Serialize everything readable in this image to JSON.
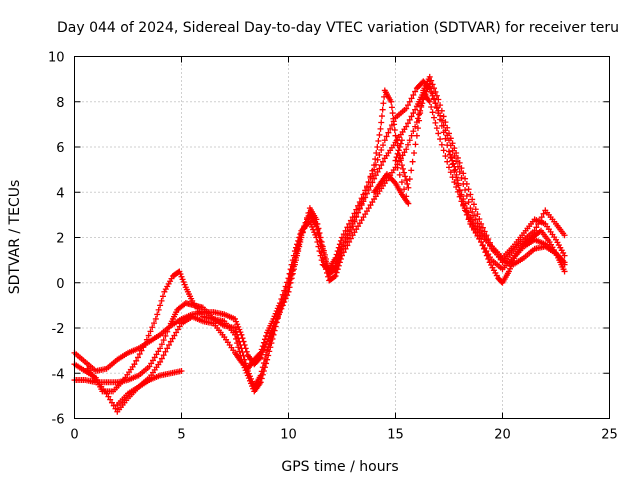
{
  "chart_data": {
    "type": "scatter",
    "title": "Day 044 of 2024, Sidereal Day-to-day VTEC variation (SDTVAR) for receiver teru",
    "xlabel": "GPS time / hours",
    "ylabel": "SDTVAR / TECUs",
    "xlim": [
      0,
      25
    ],
    "ylim": [
      -6,
      10
    ],
    "xticks": [
      "0",
      "5",
      "10",
      "15",
      "20",
      "25"
    ],
    "yticks": [
      "-6",
      "-4",
      "-2",
      "0",
      "2",
      "4",
      "6",
      "8",
      "10"
    ],
    "grid": true,
    "marker": "+",
    "color": "#ff0000",
    "series": [
      {
        "points": [
          [
            0,
            -3.1
          ],
          [
            0.5,
            -3.5
          ],
          [
            1.0,
            -3.9
          ],
          [
            1.5,
            -3.8
          ],
          [
            2.0,
            -3.4
          ],
          [
            2.5,
            -3.1
          ],
          [
            3.0,
            -2.9
          ],
          [
            3.5,
            -2.6
          ],
          [
            4.0,
            -2.3
          ],
          [
            4.5,
            -1.9
          ],
          [
            5.0,
            -1.6
          ],
          [
            5.5,
            -1.4
          ],
          [
            6.0,
            -1.3
          ],
          [
            6.5,
            -1.3
          ],
          [
            7.0,
            -1.4
          ],
          [
            7.5,
            -1.6
          ],
          [
            7.8,
            -2.3
          ],
          [
            8.1,
            -3.2
          ],
          [
            8.4,
            -3.6
          ],
          [
            8.7,
            -3.3
          ],
          [
            9.0,
            -2.6
          ],
          [
            9.3,
            -1.9
          ],
          [
            9.6,
            -1.3
          ],
          [
            10.0,
            -0.4
          ],
          [
            10.3,
            0.8
          ],
          [
            10.6,
            2.0
          ],
          [
            11.0,
            3.3
          ],
          [
            11.3,
            2.8
          ],
          [
            11.6,
            1.6
          ],
          [
            11.9,
            0.5
          ],
          [
            12.2,
            0.7
          ],
          [
            12.5,
            1.6
          ],
          [
            13.0,
            2.6
          ],
          [
            13.5,
            3.6
          ],
          [
            14.0,
            4.6
          ],
          [
            14.5,
            5.5
          ],
          [
            15.0,
            6.2
          ],
          [
            15.5,
            6.9
          ],
          [
            16.0,
            7.8
          ],
          [
            16.3,
            8.4
          ],
          [
            16.6,
            8.0
          ],
          [
            17.0,
            6.6
          ],
          [
            17.5,
            5.1
          ],
          [
            18.0,
            3.8
          ],
          [
            18.5,
            2.6
          ],
          [
            19.0,
            1.8
          ],
          [
            19.5,
            1.0
          ],
          [
            20.0,
            0.6
          ],
          [
            20.5,
            1.1
          ],
          [
            21.0,
            1.6
          ],
          [
            21.5,
            1.9
          ],
          [
            22.0,
            1.7
          ],
          [
            22.5,
            1.3
          ],
          [
            22.9,
            0.8
          ]
        ]
      },
      {
        "points": [
          [
            0,
            -4.3
          ],
          [
            0.5,
            -4.3
          ],
          [
            1.0,
            -4.4
          ],
          [
            1.5,
            -4.4
          ],
          [
            2.0,
            -4.4
          ],
          [
            2.5,
            -4.3
          ],
          [
            3.0,
            -4.1
          ],
          [
            3.5,
            -3.7
          ],
          [
            4.0,
            -2.9
          ],
          [
            4.5,
            -1.8
          ],
          [
            4.8,
            -1.2
          ],
          [
            5.2,
            -0.9
          ],
          [
            5.6,
            -1.0
          ],
          [
            6.0,
            -1.1
          ],
          [
            6.5,
            -1.6
          ],
          [
            7.0,
            -1.9
          ],
          [
            7.5,
            -2.0
          ],
          [
            7.8,
            -2.9
          ],
          [
            8.1,
            -3.9
          ],
          [
            8.4,
            -4.6
          ],
          [
            8.7,
            -4.1
          ],
          [
            9.0,
            -3.0
          ],
          [
            9.3,
            -2.1
          ],
          [
            9.6,
            -1.1
          ],
          [
            10.0,
            0.0
          ],
          [
            10.3,
            1.1
          ],
          [
            10.6,
            2.2
          ],
          [
            11.0,
            3.1
          ],
          [
            11.3,
            2.6
          ],
          [
            11.6,
            1.1
          ],
          [
            11.9,
            0.1
          ],
          [
            12.2,
            0.3
          ],
          [
            12.5,
            1.2
          ],
          [
            13.0,
            2.1
          ],
          [
            13.5,
            2.9
          ],
          [
            14.0,
            3.7
          ],
          [
            14.5,
            4.4
          ],
          [
            15.0,
            5.1
          ],
          [
            15.5,
            5.9
          ],
          [
            16.0,
            7.1
          ],
          [
            16.3,
            8.1
          ],
          [
            16.6,
            8.8
          ],
          [
            17.0,
            7.5
          ],
          [
            17.5,
            5.8
          ],
          [
            18.0,
            4.1
          ],
          [
            18.5,
            2.9
          ],
          [
            19.0,
            2.1
          ],
          [
            19.5,
            1.6
          ],
          [
            20.0,
            1.1
          ],
          [
            20.5,
            1.6
          ],
          [
            21.0,
            2.2
          ],
          [
            21.5,
            2.8
          ],
          [
            22.0,
            2.6
          ],
          [
            22.5,
            1.9
          ],
          [
            22.9,
            1.2
          ]
        ]
      },
      {
        "points": [
          [
            0.6,
            -3.8
          ],
          [
            1.0,
            -4.3
          ],
          [
            1.5,
            -4.9
          ],
          [
            2.0,
            -5.7
          ],
          [
            2.5,
            -5.1
          ],
          [
            3.0,
            -4.6
          ],
          [
            3.5,
            -4.2
          ],
          [
            4.0,
            -3.5
          ],
          [
            4.5,
            -2.6
          ],
          [
            5.0,
            -1.8
          ],
          [
            5.5,
            -1.5
          ],
          [
            6.0,
            -1.7
          ],
          [
            6.5,
            -1.8
          ],
          [
            7.0,
            -2.4
          ],
          [
            7.5,
            -3.1
          ],
          [
            7.8,
            -3.5
          ],
          [
            8.1,
            -3.8
          ],
          [
            8.4,
            -3.4
          ],
          [
            8.7,
            -3.1
          ],
          [
            9.0,
            -2.2
          ],
          [
            9.3,
            -1.6
          ],
          [
            9.6,
            -0.9
          ],
          [
            10.0,
            0.2
          ],
          [
            10.3,
            1.4
          ],
          [
            10.6,
            2.3
          ],
          [
            11.0,
            2.7
          ],
          [
            11.3,
            2.0
          ],
          [
            11.6,
            0.8
          ],
          [
            11.9,
            0.6
          ],
          [
            12.2,
            1.1
          ],
          [
            12.5,
            2.0
          ],
          [
            13.0,
            2.9
          ],
          [
            13.5,
            3.9
          ],
          [
            14.0,
            5.0
          ],
          [
            14.5,
            6.3
          ],
          [
            15.0,
            7.3
          ],
          [
            15.5,
            7.7
          ],
          [
            16.0,
            8.6
          ],
          [
            16.3,
            8.9
          ],
          [
            16.6,
            8.6
          ],
          [
            17.0,
            7.6
          ],
          [
            17.5,
            6.3
          ],
          [
            18.0,
            4.9
          ],
          [
            18.5,
            3.3
          ],
          [
            19.0,
            2.3
          ],
          [
            19.5,
            1.5
          ],
          [
            20.0,
            1.0
          ],
          [
            20.5,
            0.8
          ],
          [
            21.0,
            1.1
          ],
          [
            21.5,
            1.5
          ],
          [
            22.0,
            1.6
          ],
          [
            22.5,
            1.3
          ],
          [
            22.9,
            0.9
          ]
        ]
      },
      {
        "points": [
          [
            0,
            -3.6
          ],
          [
            0.5,
            -3.9
          ],
          [
            1.0,
            -4.2
          ],
          [
            1.3,
            -4.8
          ],
          [
            1.8,
            -4.8
          ],
          [
            2.3,
            -4.3
          ],
          [
            2.8,
            -3.6
          ],
          [
            3.3,
            -2.7
          ],
          [
            3.8,
            -1.6
          ],
          [
            4.2,
            -0.4
          ],
          [
            4.6,
            0.3
          ],
          [
            4.9,
            0.5
          ],
          [
            5.2,
            -0.2
          ],
          [
            5.5,
            -0.8
          ],
          [
            6.0,
            -1.5
          ],
          [
            6.5,
            -1.6
          ],
          [
            7.0,
            -1.7
          ],
          [
            7.5,
            -2.3
          ],
          [
            7.8,
            -3.4
          ],
          [
            8.1,
            -4.1
          ],
          [
            8.4,
            -4.8
          ],
          [
            8.7,
            -4.4
          ],
          [
            9.0,
            -3.4
          ],
          [
            9.3,
            -2.3
          ],
          [
            9.6,
            -1.2
          ],
          [
            10.0,
            -0.2
          ],
          [
            10.3,
            0.9
          ],
          [
            10.6,
            2.1
          ],
          [
            11.0,
            3.0
          ],
          [
            11.3,
            2.5
          ],
          [
            11.6,
            1.5
          ],
          [
            11.9,
            0.4
          ],
          [
            12.2,
            0.6
          ],
          [
            12.5,
            1.5
          ],
          [
            13.0,
            2.5
          ],
          [
            13.5,
            3.7
          ],
          [
            14.0,
            5.2
          ],
          [
            14.3,
            6.8
          ],
          [
            14.5,
            8.5
          ],
          [
            14.8,
            8.0
          ],
          [
            15.0,
            6.5
          ],
          [
            15.3,
            5.2
          ],
          [
            15.6,
            4.2
          ],
          [
            16.0,
            6.5
          ],
          [
            16.3,
            8.5
          ],
          [
            16.6,
            9.1
          ],
          [
            17.0,
            8.1
          ],
          [
            17.5,
            6.6
          ],
          [
            18.0,
            5.3
          ],
          [
            18.5,
            3.9
          ],
          [
            19.0,
            2.6
          ],
          [
            19.5,
            1.6
          ],
          [
            20.0,
            0.9
          ],
          [
            20.5,
            1.4
          ],
          [
            21.0,
            1.9
          ],
          [
            21.5,
            2.3
          ],
          [
            22.0,
            3.2
          ],
          [
            22.5,
            2.6
          ],
          [
            22.9,
            2.1
          ]
        ]
      },
      {
        "points": [
          [
            2.0,
            -5.4
          ],
          [
            2.5,
            -4.9
          ],
          [
            3.0,
            -4.6
          ],
          [
            3.5,
            -4.3
          ],
          [
            4.0,
            -4.1
          ],
          [
            4.5,
            -4.0
          ],
          [
            5.0,
            -3.9
          ]
        ]
      },
      {
        "points": [
          [
            14.0,
            4.0
          ],
          [
            14.3,
            4.4
          ],
          [
            14.6,
            4.8
          ],
          [
            15.0,
            4.4
          ],
          [
            15.3,
            3.9
          ],
          [
            15.6,
            3.5
          ],
          [
            15.0,
            5.4
          ],
          [
            15.3,
            6.3
          ]
        ]
      },
      {
        "points": [
          [
            17.5,
            5.8
          ],
          [
            17.8,
            5.0
          ],
          [
            18.1,
            3.6
          ],
          [
            18.5,
            2.7
          ],
          [
            19.0,
            1.8
          ],
          [
            19.4,
            0.9
          ],
          [
            19.8,
            0.2
          ],
          [
            20.0,
            0.0
          ],
          [
            20.3,
            0.5
          ],
          [
            20.6,
            1.2
          ],
          [
            21.0,
            1.7
          ],
          [
            21.4,
            2.0
          ],
          [
            21.8,
            2.3
          ],
          [
            22.2,
            1.8
          ],
          [
            22.6,
            1.1
          ],
          [
            22.9,
            0.5
          ]
        ]
      }
    ]
  }
}
